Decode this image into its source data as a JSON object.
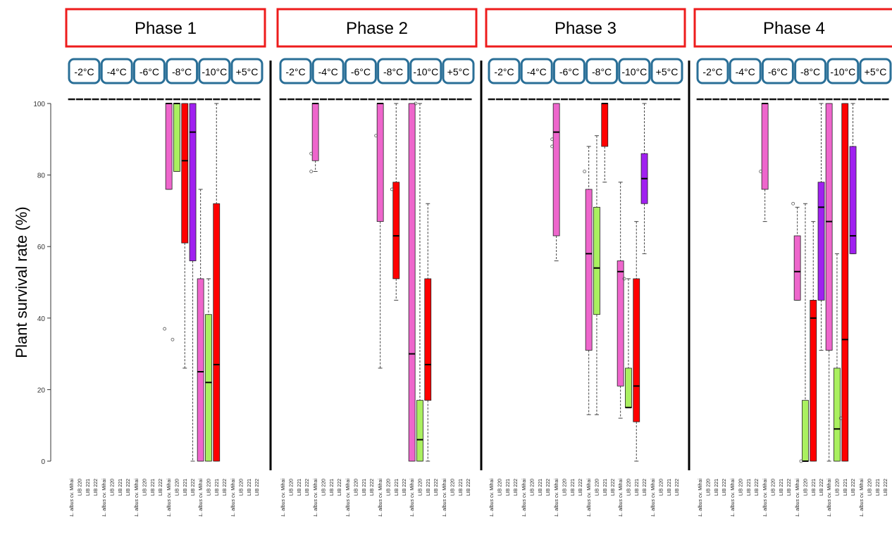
{
  "chart_data": {
    "type": "boxplot",
    "ylabel": "Plant survival rate (%)",
    "ylim": [
      0,
      100
    ],
    "yticks": [
      0,
      20,
      40,
      60,
      80,
      100
    ],
    "temperatures": [
      "-2°C",
      "-4°C",
      "-6°C",
      "-8°C",
      "-10°C",
      "+5°C"
    ],
    "genotypes": [
      "L. albus cv. Mihai",
      "LIB 220",
      "LIB 221",
      "LIB 222"
    ],
    "genotype_colors": [
      "#ee66cc",
      "#aaf060",
      "#ff0000",
      "#a020f0"
    ],
    "panels": [
      {
        "title": "Phase 1",
        "groups": [
          {
            "temp": "-2°C",
            "boxes": [
              null,
              null,
              null,
              null
            ]
          },
          {
            "temp": "-4°C",
            "boxes": [
              null,
              null,
              null,
              null
            ]
          },
          {
            "temp": "-6°C",
            "boxes": [
              null,
              null,
              null,
              null
            ]
          },
          {
            "temp": "-8°C",
            "boxes": [
              {
                "min": 76,
                "q1": 76,
                "median": 100,
                "q3": 100,
                "max": 100,
                "outliers": [
                  37
                ]
              },
              {
                "min": 81,
                "q1": 81,
                "median": 100,
                "q3": 100,
                "max": 100,
                "outliers": [
                  34
                ]
              },
              {
                "min": 26,
                "q1": 61,
                "median": 84,
                "q3": 100,
                "max": 100,
                "outliers": []
              },
              {
                "min": 0,
                "q1": 56,
                "median": 92,
                "q3": 100,
                "max": 100,
                "outliers": []
              }
            ]
          },
          {
            "temp": "-10°C",
            "boxes": [
              {
                "min": 0,
                "q1": 0,
                "median": 25,
                "q3": 51,
                "max": 76,
                "outliers": []
              },
              {
                "min": 0,
                "q1": 0,
                "median": 22,
                "q3": 41,
                "max": 51,
                "outliers": []
              },
              {
                "min": 0,
                "q1": 0,
                "median": 27,
                "q3": 72,
                "max": 100,
                "outliers": []
              },
              null
            ]
          },
          {
            "temp": "+5°C",
            "boxes": [
              null,
              null,
              null,
              null
            ]
          }
        ]
      },
      {
        "title": "Phase 2",
        "groups": [
          {
            "temp": "-2°C",
            "boxes": [
              null,
              null,
              null,
              null
            ]
          },
          {
            "temp": "-4°C",
            "boxes": [
              {
                "min": 81,
                "q1": 84,
                "median": 100,
                "q3": 100,
                "max": 100,
                "outliers": [
                  81,
                  86
                ]
              },
              null,
              null,
              null
            ]
          },
          {
            "temp": "-6°C",
            "boxes": [
              null,
              null,
              null,
              null
            ]
          },
          {
            "temp": "-8°C",
            "boxes": [
              {
                "min": 26,
                "q1": 67,
                "median": 100,
                "q3": 100,
                "max": 100,
                "outliers": [
                  91
                ]
              },
              null,
              {
                "min": 45,
                "q1": 51,
                "median": 63,
                "q3": 78,
                "max": 100,
                "outliers": [
                  76
                ]
              },
              null
            ]
          },
          {
            "temp": "-10°C",
            "boxes": [
              {
                "min": 0,
                "q1": 0,
                "median": 30,
                "q3": 100,
                "max": 100,
                "outliers": []
              },
              {
                "min": 0,
                "q1": 0,
                "median": 6,
                "q3": 17,
                "max": 100,
                "outliers": [
                  100
                ]
              },
              {
                "min": 0,
                "q1": 17,
                "median": 27,
                "q3": 51,
                "max": 72,
                "outliers": []
              },
              null
            ]
          },
          {
            "temp": "+5°C",
            "boxes": [
              null,
              null,
              null,
              null
            ]
          }
        ]
      },
      {
        "title": "Phase 3",
        "groups": [
          {
            "temp": "-2°C",
            "boxes": [
              null,
              null,
              null,
              null
            ]
          },
          {
            "temp": "-4°C",
            "boxes": [
              null,
              null,
              null,
              null
            ]
          },
          {
            "temp": "-6°C",
            "boxes": [
              {
                "min": 56,
                "q1": 63,
                "median": 92,
                "q3": 100,
                "max": 100,
                "outliers": [
                  90,
                  88
                ]
              },
              null,
              null,
              null
            ]
          },
          {
            "temp": "-8°C",
            "boxes": [
              {
                "min": 13,
                "q1": 31,
                "median": 58,
                "q3": 76,
                "max": 88,
                "outliers": [
                  81
                ]
              },
              {
                "min": 13,
                "q1": 41,
                "median": 54,
                "q3": 71,
                "max": 91,
                "outliers": []
              },
              {
                "min": 78,
                "q1": 88,
                "median": 100,
                "q3": 100,
                "max": 100,
                "outliers": []
              },
              null
            ]
          },
          {
            "temp": "-10°C",
            "boxes": [
              {
                "min": 12,
                "q1": 21,
                "median": 53,
                "q3": 56,
                "max": 78,
                "outliers": []
              },
              {
                "min": 15,
                "q1": 15,
                "median": 15,
                "q3": 26,
                "max": 51,
                "outliers": [
                  51
                ]
              },
              {
                "min": 0,
                "q1": 11,
                "median": 21,
                "q3": 51,
                "max": 67,
                "outliers": []
              },
              {
                "min": 58,
                "q1": 72,
                "median": 79,
                "q3": 86,
                "max": 100,
                "outliers": []
              }
            ]
          },
          {
            "temp": "+5°C",
            "boxes": [
              null,
              null,
              null,
              null
            ]
          }
        ]
      },
      {
        "title": "Phase 4",
        "groups": [
          {
            "temp": "-2°C",
            "boxes": [
              null,
              null,
              null,
              null
            ]
          },
          {
            "temp": "-4°C",
            "boxes": [
              null,
              null,
              null,
              null
            ]
          },
          {
            "temp": "-6°C",
            "boxes": [
              {
                "min": 67,
                "q1": 76,
                "median": 100,
                "q3": 100,
                "max": 100,
                "outliers": [
                  81
                ]
              },
              null,
              null,
              null
            ]
          },
          {
            "temp": "-8°C",
            "boxes": [
              {
                "min": 45,
                "q1": 45,
                "median": 53,
                "q3": 63,
                "max": 71,
                "outliers": [
                  72
                ]
              },
              {
                "min": 0,
                "q1": 0,
                "median": 0,
                "q3": 17,
                "max": 72,
                "outliers": [
                  0
                ]
              },
              {
                "min": 0,
                "q1": 0,
                "median": 40,
                "q3": 45,
                "max": 67,
                "outliers": []
              },
              {
                "min": 31,
                "q1": 45,
                "median": 71,
                "q3": 78,
                "max": 100,
                "outliers": []
              }
            ]
          },
          {
            "temp": "-10°C",
            "boxes": [
              {
                "min": 0,
                "q1": 31,
                "median": 67,
                "q3": 100,
                "max": 100,
                "outliers": []
              },
              {
                "min": 0,
                "q1": 0,
                "median": 9,
                "q3": 26,
                "max": 58,
                "outliers": []
              },
              {
                "min": 0,
                "q1": 0,
                "median": 34,
                "q3": 100,
                "max": 100,
                "outliers": [
                  12
                ]
              },
              {
                "min": 58,
                "q1": 58,
                "median": 63,
                "q3": 88,
                "max": 100,
                "outliers": []
              }
            ]
          },
          {
            "temp": "+5°C",
            "boxes": [
              null,
              null,
              null,
              null
            ]
          }
        ]
      }
    ]
  }
}
